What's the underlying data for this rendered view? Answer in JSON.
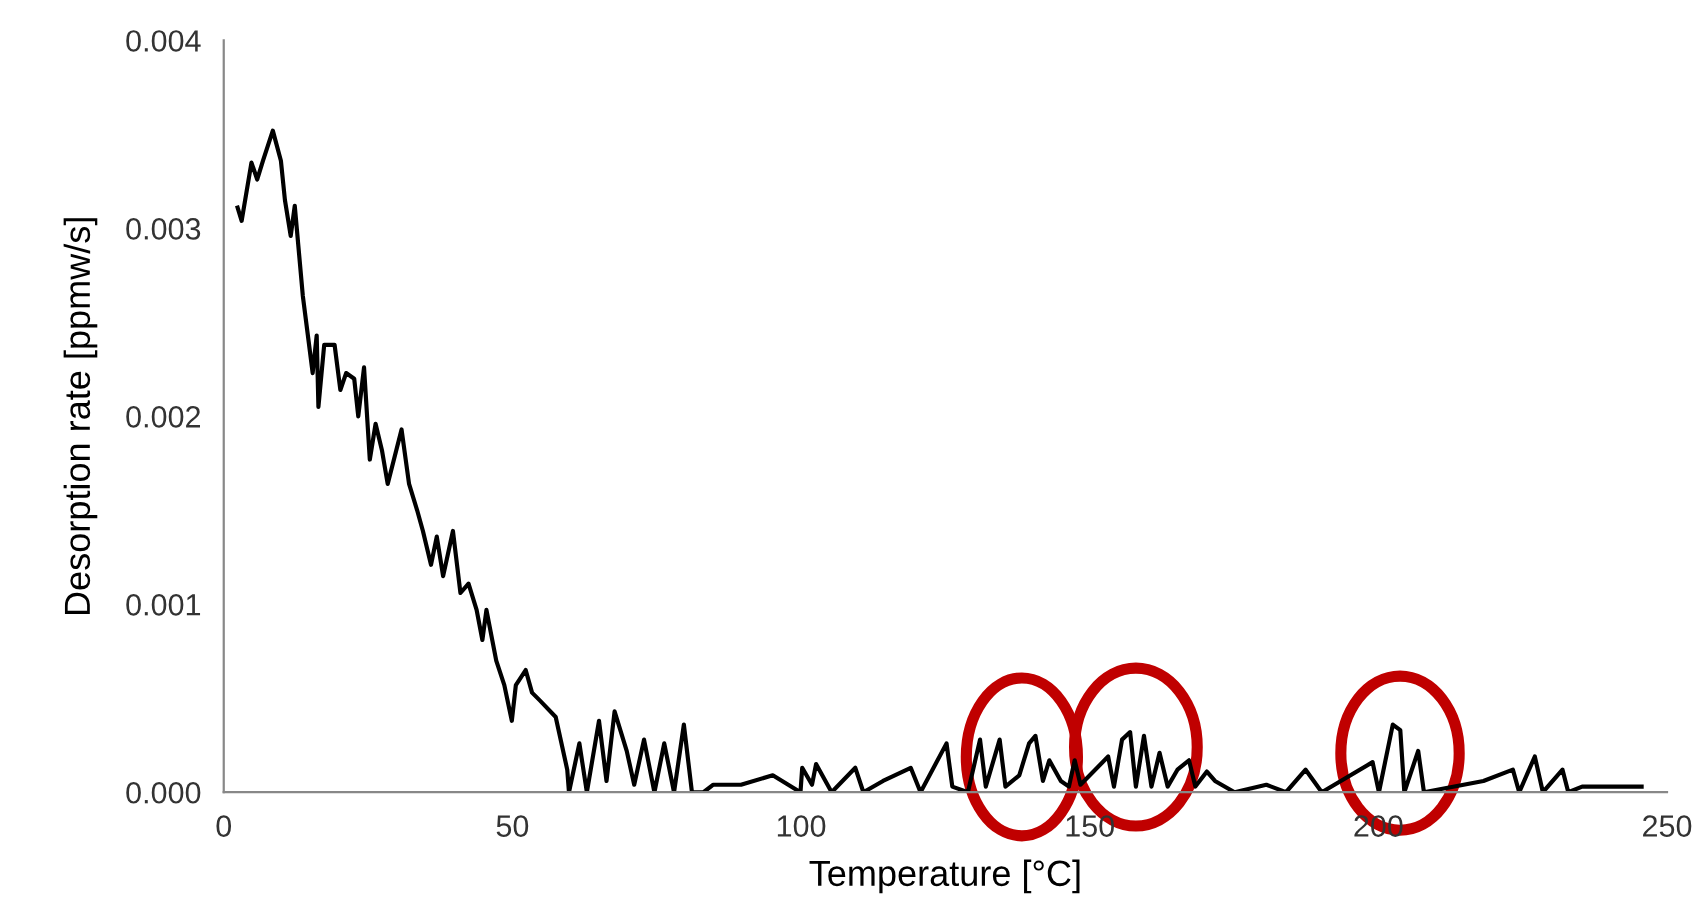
{
  "chart_data": {
    "type": "line",
    "xlabel": "Temperature [°C]",
    "ylabel": "Desorption rate [ppmw/s]",
    "x": [
      2.4,
      3.1,
      4.8,
      5.8,
      6.8,
      8.5,
      9.9,
      10.6,
      11.6,
      12.3,
      13.7,
      14.7,
      15.4,
      16.1,
      16.4,
      17.4,
      19.2,
      20.2,
      21.2,
      22.6,
      23.3,
      24.3,
      25.3,
      26.3,
      27.4,
      28.4,
      30.8,
      32.1,
      33.5,
      34.5,
      35.9,
      36.9,
      38.0,
      39.7,
      41.0,
      42.4,
      43.8,
      44.8,
      45.5,
      47.2,
      48.6,
      49.9,
      50.6,
      52.3,
      53.4,
      54.7,
      57.5,
      59.5,
      59.8,
      61.6,
      62.9,
      65.0,
      66.3,
      67.7,
      69.8,
      71.1,
      72.8,
      74.6,
      76.3,
      78.0,
      79.7,
      81.1,
      83.1,
      84.8,
      89.6,
      95.1,
      99.9,
      100.2,
      101.9,
      102.6,
      105.3,
      109.4,
      110.8,
      114.2,
      119.0,
      120.7,
      125.2,
      126.2,
      128.9,
      131.0,
      132.0,
      134.4,
      135.4,
      137.8,
      139.5,
      140.6,
      141.9,
      143.0,
      145.0,
      146.4,
      147.4,
      148.4,
      153.2,
      154.2,
      155.6,
      157.0,
      158.0,
      159.4,
      160.7,
      162.1,
      163.5,
      165.2,
      167.2,
      168.3,
      170.3,
      171.7,
      175.1,
      180.6,
      184.0,
      187.4,
      190.2,
      199.0,
      200.1,
      202.5,
      203.8,
      204.5,
      206.9,
      207.9,
      218.2,
      223.3,
      224.4,
      227.1,
      228.5,
      231.9,
      232.9,
      235.3,
      245.6
    ],
    "values": [
      0.00311,
      0.00304,
      0.00335,
      0.00326,
      0.00336,
      0.00352,
      0.00336,
      0.00315,
      0.00296,
      0.00312,
      0.00264,
      0.0024,
      0.00223,
      0.00243,
      0.00205,
      0.00238,
      0.00238,
      0.00214,
      0.00223,
      0.0022,
      0.002,
      0.00226,
      0.00177,
      0.00196,
      0.00182,
      0.00164,
      0.00193,
      0.00164,
      0.0015,
      0.00139,
      0.00121,
      0.00136,
      0.00115,
      0.00139,
      0.00106,
      0.00111,
      0.00097,
      0.00081,
      0.00097,
      0.0007,
      0.00057,
      0.00038,
      0.00057,
      0.00065,
      0.00053,
      0.00049,
      0.0004,
      0.00012,
      0.0,
      0.00026,
      0.0,
      0.00038,
      6e-05,
      0.00043,
      0.00022,
      4e-05,
      0.00028,
      0.0,
      0.00026,
      0.0,
      0.00036,
      0.0,
      0.0,
      4e-05,
      4e-05,
      9e-05,
      0.0,
      0.00013,
      4e-05,
      0.00015,
      0.0,
      0.00013,
      0.0,
      6e-05,
      0.00013,
      0.0,
      0.00026,
      3e-05,
      0.0,
      0.00028,
      3e-05,
      0.00028,
      3e-05,
      9e-05,
      0.00026,
      0.0003,
      6e-05,
      0.00017,
      6e-05,
      3e-05,
      0.00017,
      4e-05,
      0.00019,
      3e-05,
      0.00028,
      0.00032,
      3e-05,
      0.0003,
      3e-05,
      0.00021,
      3e-05,
      0.00012,
      0.00017,
      3e-05,
      0.00011,
      6e-05,
      0.0,
      4e-05,
      0.0,
      0.00012,
      0.0,
      0.00016,
      0.0,
      0.00036,
      0.00033,
      0.0,
      0.00022,
      0.0,
      6e-05,
      0.00012,
      0.0,
      0.00019,
      0.0,
      0.00012,
      0.0,
      3e-05,
      3e-05
    ],
    "color": "#000000",
    "xlim": [
      0,
      250
    ],
    "ylim": [
      0,
      0.004
    ],
    "xticks": [
      0,
      50,
      100,
      150,
      200,
      250
    ],
    "yticks": [
      {
        "value": 0,
        "label": "0.000"
      },
      {
        "value": 0.001,
        "label": "0.001"
      },
      {
        "value": 0.002,
        "label": "0.002"
      },
      {
        "value": 0.003,
        "label": "0.003"
      },
      {
        "value": 0.004,
        "label": "0.004"
      }
    ],
    "grid": false,
    "legend": false,
    "marker": "none",
    "line_style": "solid"
  }
}
